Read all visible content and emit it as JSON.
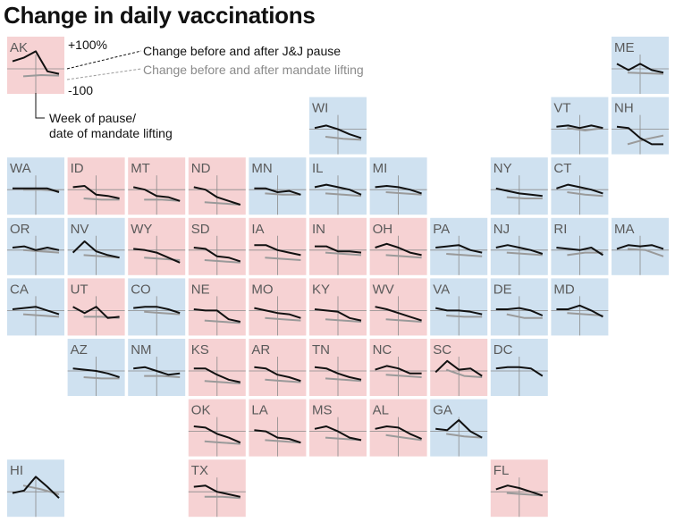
{
  "title": "Change in daily vaccinations",
  "legend": {
    "upper_label": "+100%",
    "lower_label": "-100",
    "black_series": "Change before and after J&J pause",
    "gray_series": "Change before and after mandate lifting",
    "marker_label_line1": "Week of pause/",
    "marker_label_line2": "date of mandate lifting"
  },
  "colors": {
    "red_tile": "#f6d2d3",
    "blue_tile": "#cfe1f0",
    "black_line": "#111111",
    "gray_line": "#9a9a9a",
    "label": "#5a5a5a"
  },
  "chart_data": {
    "type": "line",
    "title": "Change in daily vaccinations",
    "y_range": [
      -100,
      100
    ],
    "series_names": [
      "Change before and after J&J pause",
      "Change before and after mandate lifting"
    ],
    "states": [
      {
        "abbr": "AK",
        "col": 0,
        "row": 0,
        "fill": "red",
        "black": [
          30,
          45,
          70,
          -10,
          -20
        ],
        "gray": [
          -30,
          -25,
          -27
        ]
      },
      {
        "abbr": "ME",
        "col": 10,
        "row": 0,
        "fill": "blue",
        "black": [
          20,
          -5,
          20,
          -5,
          -15
        ],
        "gray": [
          -15,
          -18,
          -20
        ]
      },
      {
        "abbr": "WI",
        "col": 5,
        "row": 1,
        "fill": "blue",
        "black": [
          5,
          15,
          0,
          -20,
          -35
        ],
        "gray": [
          -30,
          -38,
          -42
        ]
      },
      {
        "abbr": "VT",
        "col": 9,
        "row": 1,
        "fill": "blue",
        "black": [
          10,
          15,
          5,
          15,
          5
        ],
        "gray": [
          5,
          -5,
          5
        ]
      },
      {
        "abbr": "NH",
        "col": 10,
        "row": 1,
        "fill": "blue",
        "black": [
          10,
          5,
          -35,
          -60,
          -60
        ],
        "gray": [
          -60,
          -40,
          -25
        ]
      },
      {
        "abbr": "WA",
        "col": 0,
        "row": 2,
        "fill": "blue",
        "black": [
          5,
          5,
          5,
          5,
          -10
        ],
        "gray": [
          0,
          0,
          -5
        ]
      },
      {
        "abbr": "ID",
        "col": 1,
        "row": 2,
        "fill": "red",
        "black": [
          10,
          15,
          -20,
          -25,
          -35
        ],
        "gray": [
          -35,
          -40,
          -40
        ]
      },
      {
        "abbr": "MT",
        "col": 2,
        "row": 2,
        "fill": "red",
        "black": [
          10,
          0,
          -25,
          -30,
          -45
        ],
        "gray": [
          -40,
          -40,
          -45
        ]
      },
      {
        "abbr": "ND",
        "col": 3,
        "row": 2,
        "fill": "red",
        "black": [
          10,
          0,
          -30,
          -45,
          -60
        ],
        "gray": [
          -50,
          -55,
          -60
        ]
      },
      {
        "abbr": "MN",
        "col": 4,
        "row": 2,
        "fill": "blue",
        "black": [
          5,
          5,
          -10,
          -5,
          -20
        ],
        "gray": [
          -15,
          -20,
          -20
        ]
      },
      {
        "abbr": "IL",
        "col": 5,
        "row": 2,
        "fill": "blue",
        "black": [
          10,
          20,
          10,
          0,
          -20
        ],
        "gray": [
          -15,
          -20,
          -25
        ]
      },
      {
        "abbr": "MI",
        "col": 6,
        "row": 2,
        "fill": "blue",
        "black": [
          10,
          15,
          10,
          0,
          -15
        ],
        "gray": [
          -10,
          -15,
          -20
        ]
      },
      {
        "abbr": "NY",
        "col": 8,
        "row": 2,
        "fill": "blue",
        "black": [
          5,
          -5,
          -15,
          -20,
          -25
        ],
        "gray": [
          -30,
          -35,
          -35
        ]
      },
      {
        "abbr": "CT",
        "col": 9,
        "row": 2,
        "fill": "blue",
        "black": [
          5,
          20,
          10,
          0,
          -15
        ],
        "gray": [
          -10,
          -20,
          -25
        ]
      },
      {
        "abbr": "OR",
        "col": 0,
        "row": 3,
        "fill": "blue",
        "black": [
          10,
          15,
          0,
          10,
          0
        ],
        "gray": [
          0,
          -5,
          -10
        ]
      },
      {
        "abbr": "NV",
        "col": 1,
        "row": 3,
        "fill": "blue",
        "black": [
          -10,
          35,
          -5,
          -20,
          -30
        ],
        "gray": [
          -20,
          -25,
          -30
        ]
      },
      {
        "abbr": "WY",
        "col": 2,
        "row": 3,
        "fill": "red",
        "black": [
          5,
          0,
          -10,
          -30,
          -50
        ],
        "gray": [
          -30,
          -35,
          -40
        ]
      },
      {
        "abbr": "SD",
        "col": 3,
        "row": 3,
        "fill": "red",
        "black": [
          10,
          5,
          -25,
          -30,
          -45
        ],
        "gray": [
          -40,
          -45,
          -50
        ]
      },
      {
        "abbr": "IA",
        "col": 4,
        "row": 3,
        "fill": "red",
        "black": [
          20,
          20,
          0,
          -10,
          -20
        ],
        "gray": [
          -30,
          -35,
          -40
        ]
      },
      {
        "abbr": "IN",
        "col": 5,
        "row": 3,
        "fill": "red",
        "black": [
          15,
          15,
          -5,
          -5,
          -10
        ],
        "gray": [
          -10,
          -15,
          -20
        ]
      },
      {
        "abbr": "OH",
        "col": 6,
        "row": 3,
        "fill": "red",
        "black": [
          10,
          25,
          10,
          -10,
          -20
        ],
        "gray": [
          -20,
          -25,
          -30
        ]
      },
      {
        "abbr": "PA",
        "col": 7,
        "row": 3,
        "fill": "blue",
        "black": [
          10,
          15,
          20,
          0,
          -10
        ],
        "gray": [
          -15,
          -20,
          -25
        ]
      },
      {
        "abbr": "NJ",
        "col": 8,
        "row": 3,
        "fill": "blue",
        "black": [
          10,
          20,
          10,
          0,
          -15
        ],
        "gray": [
          -10,
          -15,
          -20
        ]
      },
      {
        "abbr": "RI",
        "col": 9,
        "row": 3,
        "fill": "blue",
        "black": [
          10,
          5,
          0,
          10,
          -20
        ],
        "gray": [
          -20,
          -10,
          -10
        ]
      },
      {
        "abbr": "MA",
        "col": 10,
        "row": 3,
        "fill": "blue",
        "black": [
          5,
          20,
          15,
          20,
          5
        ],
        "gray": [
          5,
          0,
          -25
        ]
      },
      {
        "abbr": "CA",
        "col": 0,
        "row": 4,
        "fill": "blue",
        "black": [
          5,
          10,
          15,
          0,
          -15
        ],
        "gray": [
          -15,
          -20,
          -25
        ]
      },
      {
        "abbr": "UT",
        "col": 1,
        "row": 4,
        "fill": "red",
        "black": [
          15,
          -10,
          15,
          -30,
          -25
        ],
        "gray": [
          -25,
          -25,
          -30
        ]
      },
      {
        "abbr": "CO",
        "col": 2,
        "row": 4,
        "fill": "blue",
        "black": [
          10,
          15,
          15,
          5,
          -10
        ],
        "gray": [
          -5,
          -10,
          -15
        ]
      },
      {
        "abbr": "NE",
        "col": 3,
        "row": 4,
        "fill": "red",
        "black": [
          5,
          0,
          0,
          -35,
          -45
        ],
        "gray": [
          -40,
          -45,
          -50
        ]
      },
      {
        "abbr": "MO",
        "col": 4,
        "row": 4,
        "fill": "red",
        "black": [
          10,
          0,
          -10,
          -15,
          -30
        ],
        "gray": [
          -30,
          -35,
          -40
        ]
      },
      {
        "abbr": "KY",
        "col": 5,
        "row": 4,
        "fill": "red",
        "black": [
          5,
          0,
          -5,
          -30,
          -40
        ],
        "gray": [
          -35,
          -40,
          -45
        ]
      },
      {
        "abbr": "WV",
        "col": 6,
        "row": 4,
        "fill": "red",
        "black": [
          15,
          5,
          -10,
          -25,
          -40
        ],
        "gray": [
          -35,
          -40,
          -45
        ]
      },
      {
        "abbr": "VA",
        "col": 7,
        "row": 4,
        "fill": "blue",
        "black": [
          10,
          0,
          0,
          -5,
          -15
        ],
        "gray": [
          -20,
          -25,
          -25
        ]
      },
      {
        "abbr": "DE",
        "col": 8,
        "row": 4,
        "fill": "blue",
        "black": [
          5,
          5,
          10,
          0,
          -20
        ],
        "gray": [
          -15,
          -30,
          -30
        ]
      },
      {
        "abbr": "MD",
        "col": 9,
        "row": 4,
        "fill": "blue",
        "black": [
          5,
          5,
          20,
          0,
          -25
        ],
        "gray": [
          -10,
          -15,
          -20
        ]
      },
      {
        "abbr": "AZ",
        "col": 1,
        "row": 5,
        "fill": "blue",
        "black": [
          10,
          5,
          0,
          -10,
          -25
        ],
        "gray": [
          -25,
          -30,
          -30
        ]
      },
      {
        "abbr": "NM",
        "col": 2,
        "row": 5,
        "fill": "blue",
        "black": [
          10,
          15,
          0,
          -15,
          -10
        ],
        "gray": [
          -20,
          -20,
          -25
        ]
      },
      {
        "abbr": "KS",
        "col": 3,
        "row": 5,
        "fill": "red",
        "black": [
          10,
          10,
          -15,
          -35,
          -45
        ],
        "gray": [
          -40,
          -45,
          -50
        ]
      },
      {
        "abbr": "AR",
        "col": 4,
        "row": 5,
        "fill": "red",
        "black": [
          15,
          10,
          -15,
          -25,
          -40
        ],
        "gray": [
          -35,
          -40,
          -45
        ]
      },
      {
        "abbr": "TN",
        "col": 5,
        "row": 5,
        "fill": "red",
        "black": [
          15,
          10,
          -10,
          -25,
          -35
        ],
        "gray": [
          -30,
          -35,
          -40
        ]
      },
      {
        "abbr": "NC",
        "col": 6,
        "row": 5,
        "fill": "red",
        "black": [
          5,
          20,
          10,
          -10,
          -10
        ],
        "gray": [
          -15,
          -20,
          -25
        ]
      },
      {
        "abbr": "SC",
        "col": 7,
        "row": 5,
        "fill": "red",
        "black": [
          -5,
          40,
          5,
          10,
          -20
        ],
        "gray": [
          5,
          -20,
          -25
        ]
      },
      {
        "abbr": "DC",
        "col": 8,
        "row": 5,
        "fill": "blue",
        "black": [
          10,
          15,
          15,
          10,
          -20
        ],
        "gray": []
      },
      {
        "abbr": "OK",
        "col": 3,
        "row": 6,
        "fill": "red",
        "black": [
          20,
          15,
          -10,
          -25,
          -45
        ],
        "gray": [
          -40,
          -45,
          -50
        ]
      },
      {
        "abbr": "LA",
        "col": 4,
        "row": 6,
        "fill": "red",
        "black": [
          5,
          0,
          -25,
          -30,
          -45
        ],
        "gray": [
          -35,
          -40,
          -45
        ]
      },
      {
        "abbr": "MS",
        "col": 5,
        "row": 6,
        "fill": "red",
        "black": [
          10,
          20,
          0,
          -25,
          -35
        ],
        "gray": [
          -25,
          -30,
          -35
        ]
      },
      {
        "abbr": "AL",
        "col": 6,
        "row": 6,
        "fill": "red",
        "black": [
          10,
          20,
          15,
          -10,
          -30
        ],
        "gray": [
          -15,
          -25,
          -35
        ]
      },
      {
        "abbr": "GA",
        "col": 7,
        "row": 6,
        "fill": "blue",
        "black": [
          10,
          5,
          45,
          0,
          -25
        ],
        "gray": [
          -10,
          -20,
          -25
        ]
      },
      {
        "abbr": "HI",
        "col": 0,
        "row": 7,
        "fill": "blue",
        "black": [
          -5,
          5,
          60,
          20,
          -25
        ],
        "gray": [
          25,
          10,
          -10
        ]
      },
      {
        "abbr": "TX",
        "col": 3,
        "row": 7,
        "fill": "red",
        "black": [
          20,
          25,
          0,
          -10,
          -20
        ],
        "gray": [
          -20,
          -20,
          -25
        ]
      },
      {
        "abbr": "FL",
        "col": 8,
        "row": 7,
        "fill": "red",
        "black": [
          10,
          25,
          15,
          0,
          -15
        ],
        "gray": [
          -5,
          -10,
          -15
        ]
      }
    ]
  }
}
